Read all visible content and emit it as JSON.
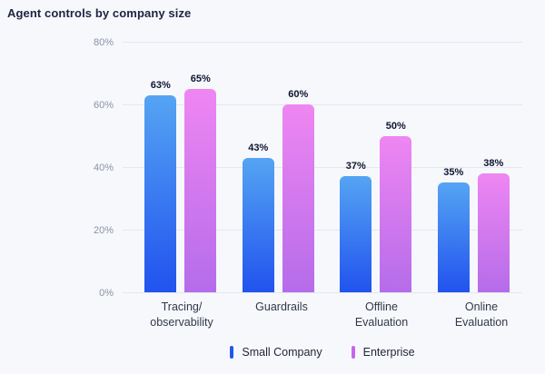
{
  "title": "Agent controls by company size",
  "chart_data": {
    "type": "bar",
    "title": "Agent controls by company size",
    "categories": [
      [
        "Tracing/",
        "observability"
      ],
      [
        "Guardrails"
      ],
      [
        "Offline",
        "Evaluation"
      ],
      [
        "Online",
        "Evaluation"
      ]
    ],
    "series": [
      {
        "name": "Small Company",
        "values": [
          63,
          43,
          37,
          35
        ],
        "labels": [
          "63%",
          "43%",
          "37%",
          "35%"
        ],
        "gradient_top": "#55a4f3",
        "gradient_bottom": "#2153ee",
        "legend_marker_color": "#2356f0"
      },
      {
        "name": "Enterprise",
        "values": [
          65,
          60,
          50,
          38
        ],
        "labels": [
          "65%",
          "60%",
          "50%",
          "38%"
        ],
        "gradient_top": "#ef86f2",
        "gradient_bottom": "#b56cea",
        "legend_marker_color": "#c566ee"
      }
    ],
    "y_ticks": [
      "80%",
      "60%",
      "40%",
      "20%",
      "0%"
    ],
    "ylim": [
      0,
      80
    ],
    "grid": true,
    "legend_position": "bottom",
    "colors": {
      "background": "#f7f8fc",
      "gridline": "#e4e7ef",
      "tick_label": "#8b92a3",
      "category_label": "#323849",
      "value_label": "#0e1530",
      "title": "#1c2340",
      "legend_text": "#1e2536"
    }
  }
}
